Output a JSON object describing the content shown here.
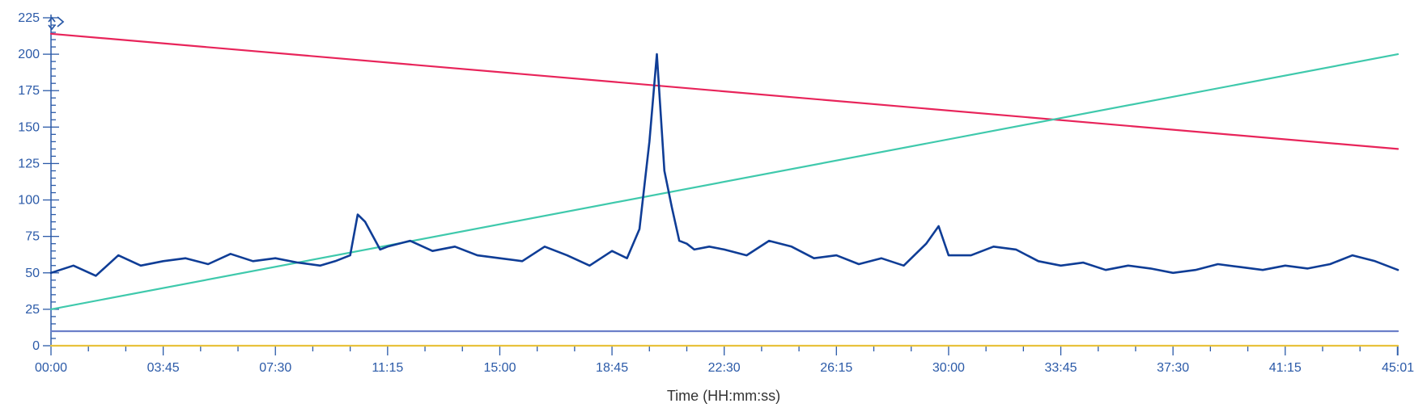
{
  "chart_data": {
    "type": "line",
    "xlabel": "Time (HH:mm:ss)",
    "ylabel": "",
    "ylim": [
      0,
      225
    ],
    "xlim_seconds": [
      0,
      2701
    ],
    "x_tick_labels": [
      "00:00",
      "03:45",
      "07:30",
      "11:15",
      "15:00",
      "18:45",
      "22:30",
      "26:15",
      "30:00",
      "33:45",
      "37:30",
      "41:15",
      "45:01"
    ],
    "y_tick_labels": [
      "0",
      "25",
      "50",
      "75",
      "100",
      "125",
      "150",
      "175",
      "200",
      "225"
    ],
    "grid": false,
    "legend": "none",
    "scrollbar_icon": "chevron-up-down-icon",
    "series": [
      {
        "color": "#e8245a",
        "x": [
          "00:00",
          "45:01"
        ],
        "values": [
          214,
          135
        ]
      },
      {
        "color": "#3fc9ac",
        "x": [
          "00:00",
          "45:01"
        ],
        "values": [
          25,
          200
        ]
      },
      {
        "color": "#6b7fc9",
        "x": [
          "00:00",
          "45:01"
        ],
        "values": [
          10,
          10
        ]
      },
      {
        "color": "#e8c23c",
        "x": [
          "00:00",
          "45:01"
        ],
        "values": [
          0,
          0
        ]
      },
      {
        "color": "#0f3d96",
        "x": [
          "00:00",
          "00:45",
          "01:30",
          "02:15",
          "03:00",
          "03:45",
          "04:30",
          "05:15",
          "06:00",
          "06:45",
          "07:30",
          "08:15",
          "09:00",
          "09:30",
          "10:00",
          "10:15",
          "10:30",
          "11:00",
          "11:15",
          "12:00",
          "12:45",
          "13:30",
          "14:15",
          "15:00",
          "15:45",
          "16:30",
          "17:15",
          "18:00",
          "18:45",
          "19:15",
          "19:40",
          "20:00",
          "20:15",
          "20:30",
          "20:45",
          "21:00",
          "21:15",
          "21:30",
          "22:00",
          "22:30",
          "23:15",
          "24:00",
          "24:45",
          "25:30",
          "26:15",
          "27:00",
          "27:45",
          "28:30",
          "29:15",
          "29:40",
          "30:00",
          "30:45",
          "31:30",
          "32:15",
          "33:00",
          "33:45",
          "34:30",
          "35:15",
          "36:00",
          "36:45",
          "37:30",
          "38:15",
          "39:00",
          "39:45",
          "40:30",
          "41:15",
          "42:00",
          "42:45",
          "43:30",
          "44:15",
          "45:01"
        ],
        "values": [
          50,
          55,
          48,
          62,
          55,
          58,
          60,
          56,
          63,
          58,
          60,
          57,
          55,
          58,
          62,
          90,
          85,
          66,
          68,
          72,
          65,
          68,
          62,
          60,
          58,
          68,
          62,
          55,
          65,
          60,
          80,
          140,
          200,
          120,
          95,
          72,
          70,
          66,
          68,
          66,
          62,
          72,
          68,
          60,
          62,
          56,
          60,
          55,
          70,
          82,
          62,
          62,
          68,
          66,
          58,
          55,
          57,
          52,
          55,
          53,
          50,
          52,
          56,
          54,
          52,
          55,
          53,
          56,
          62,
          58,
          52
        ]
      }
    ]
  }
}
